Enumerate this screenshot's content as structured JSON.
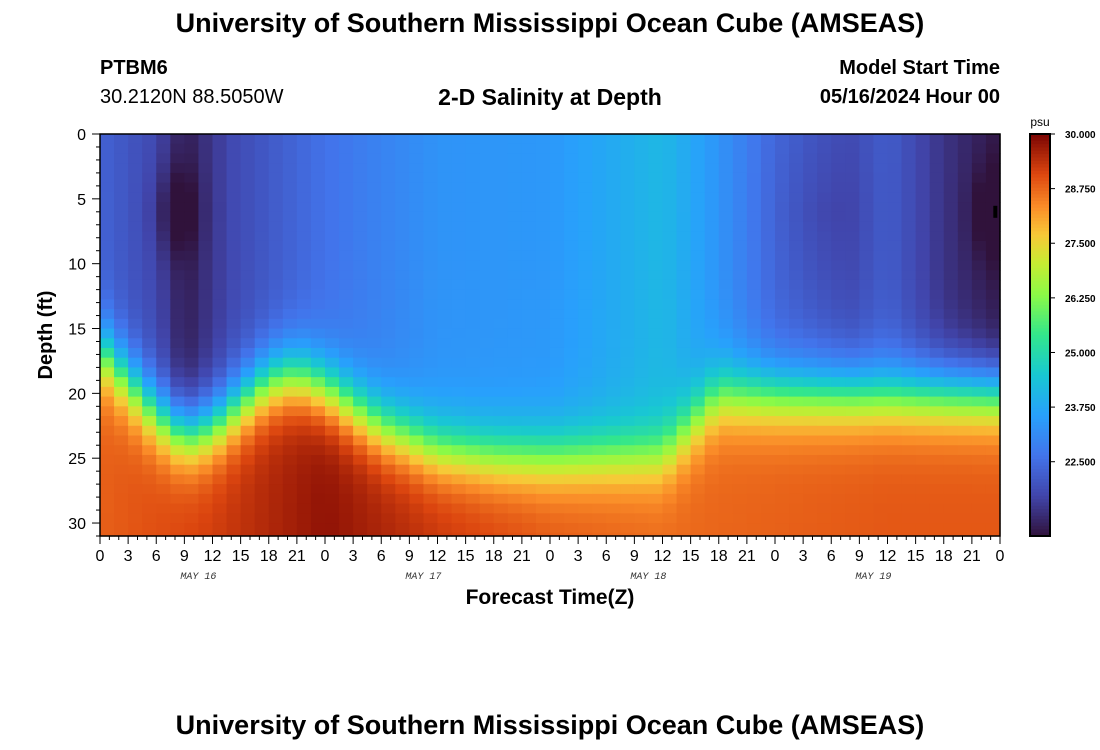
{
  "header": {
    "title": "University of Southern Mississippi Ocean Cube (AMSEAS)",
    "station_id": "PTBM6",
    "coordinates": "30.2120N  88.5050W",
    "chart_title": "2-D Salinity at Depth",
    "model_start_label": "Model Start Time",
    "model_start_value": "05/16/2024 Hour 00"
  },
  "footer": {
    "title": "University of Southern Mississippi Ocean Cube (AMSEAS)"
  },
  "chart_data": {
    "type": "heatmap",
    "title": "2-D Salinity at Depth",
    "xlabel": "Forecast Time(Z)",
    "ylabel": "Depth (ft)",
    "x_tick_labels": [
      "0",
      "3",
      "6",
      "9",
      "12",
      "15",
      "18",
      "21",
      "0",
      "3",
      "6",
      "9",
      "12",
      "15",
      "18",
      "21",
      "0",
      "3",
      "6",
      "9",
      "12",
      "15",
      "18",
      "21",
      "0",
      "3",
      "6",
      "9",
      "12",
      "15",
      "18",
      "21",
      "0"
    ],
    "day_labels": [
      "MAY 16",
      "MAY 17",
      "MAY 18",
      "MAY 19"
    ],
    "xlim_hours": [
      0,
      96
    ],
    "y_ticks": [
      0,
      5,
      10,
      15,
      20,
      25,
      30
    ],
    "ylim": [
      0,
      31
    ],
    "y_inverted": true,
    "colorbar": {
      "unit": "psu",
      "min": 20.8,
      "max": 30.0,
      "tick_values": [
        22.5,
        23.75,
        25.0,
        26.25,
        27.5,
        28.75,
        30.0
      ],
      "tick_labels": [
        "22.500",
        "23.750",
        "25.000",
        "26.250",
        "27.500",
        "28.750",
        "30.000"
      ]
    },
    "halocline_depth_ft": {
      "time_hours": [
        0,
        6,
        9,
        12,
        18,
        21,
        24,
        30,
        36,
        42,
        48,
        60,
        66,
        72,
        84,
        96
      ],
      "values": [
        14,
        19,
        20.6,
        20,
        16.5,
        16,
        17,
        20,
        21.8,
        22.3,
        22.4,
        22.2,
        17.5,
        17.5,
        17.5,
        17.5
      ]
    },
    "surface_salinity_psu": {
      "time_hours": [
        0,
        6,
        9,
        14,
        24,
        36,
        48,
        60,
        64,
        72,
        80,
        84,
        90,
        96
      ],
      "values": [
        22.3,
        21.8,
        21.0,
        21.8,
        22.6,
        23.3,
        23.4,
        24.1,
        23.6,
        22.4,
        21.9,
        22.2,
        21.4,
        20.9
      ]
    },
    "bottom_salinity_psu": {
      "time_hours": [
        0,
        12,
        24,
        36,
        48,
        60,
        72,
        84,
        96
      ],
      "values": [
        28.8,
        29.2,
        29.8,
        29.3,
        28.9,
        28.7,
        28.8,
        28.9,
        28.9
      ]
    },
    "marker": {
      "time_hours": 95.5,
      "depth_ft": 6
    }
  }
}
